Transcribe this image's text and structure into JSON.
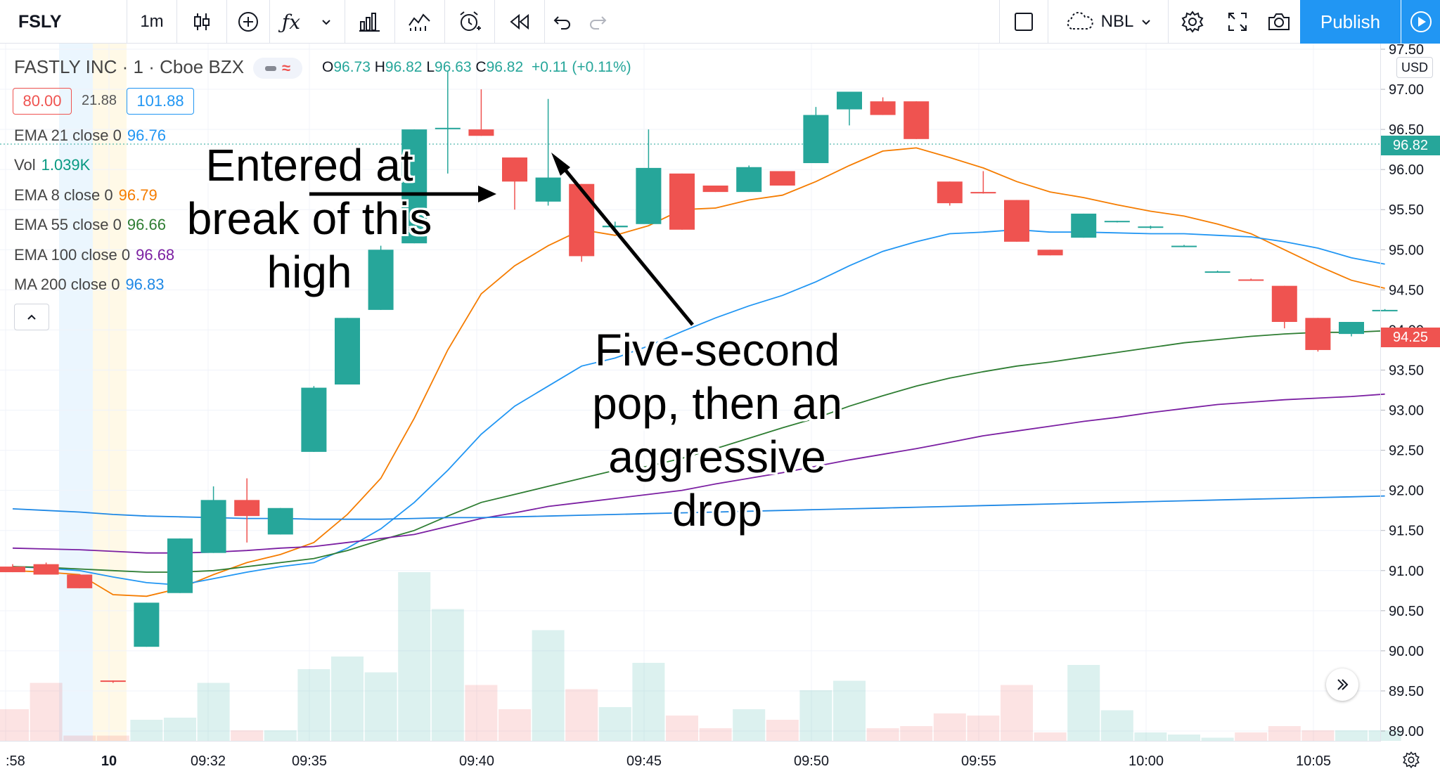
{
  "toolbar": {
    "symbol": "FSLY",
    "interval": "1m",
    "fx_label": "ƒx",
    "exchange_label": "NBL",
    "publish_label": "Publish"
  },
  "legend": {
    "title": "FASTLY INC · 1 · Cboe BZX",
    "ohlc": {
      "o_label": "O",
      "o": "96.73",
      "h_label": "H",
      "h": "96.82",
      "l_label": "L",
      "l": "96.63",
      "c_label": "C",
      "c": "96.82",
      "change": "+0.11 (+0.11%)"
    },
    "boxes": {
      "left": "80.00",
      "mid": "21.88",
      "right": "101.88"
    },
    "indicators": [
      {
        "label": "EMA 21 close 0",
        "value": "96.76",
        "color": "#2196f3"
      },
      {
        "label": "Vol",
        "value": "1.039K",
        "color": "#089981"
      },
      {
        "label": "EMA 8 close 0",
        "value": "96.79",
        "color": "#f57c00"
      },
      {
        "label": "EMA 55 close 0",
        "value": "96.66",
        "color": "#2e7d32"
      },
      {
        "label": "EMA 100 close 0",
        "value": "96.68",
        "color": "#7b1fa2"
      },
      {
        "label": "MA 200 close 0",
        "value": "96.83",
        "color": "#1e88e5"
      }
    ]
  },
  "annotations": {
    "entry": "Entered at break of this high",
    "pop": "Five-second pop, then an aggressive drop"
  },
  "price_axis": {
    "currency": "USD",
    "ticks": [
      "97.50",
      "97.00",
      "96.50",
      "96.00",
      "95.50",
      "95.00",
      "94.50",
      "94.00",
      "93.50",
      "93.00",
      "92.50",
      "92.00",
      "91.50",
      "91.00",
      "90.50",
      "90.00",
      "89.50",
      "89.00"
    ],
    "last_price": "96.82",
    "current_price": "94.25"
  },
  "time_axis": {
    "ticks": [
      ":58",
      "10",
      "09:32",
      "09:35",
      "09:40",
      "09:45",
      "09:50",
      "09:55",
      "10:00",
      "10:05"
    ]
  },
  "colors": {
    "up": "#26a69a",
    "down": "#ef5350",
    "ema8": "#f57c00",
    "ema21": "#2196f3",
    "ema55": "#2e7d32",
    "ema100": "#7b1fa2",
    "ma200": "#1e88e5",
    "accent": "#2196f3"
  },
  "chart_data": {
    "type": "candlestick",
    "title": "FASTLY INC · 1 · Cboe BZX",
    "ylim": [
      89.0,
      97.5
    ],
    "candles": [
      {
        "o": 91.05,
        "h": 91.08,
        "l": 90.98,
        "c": 90.98
      },
      {
        "o": 91.08,
        "h": 91.1,
        "l": 90.95,
        "c": 90.95
      },
      {
        "o": 90.95,
        "h": 90.95,
        "l": 90.78,
        "c": 90.78
      },
      {
        "o": 89.63,
        "h": 89.63,
        "l": 89.6,
        "c": 89.62
      },
      {
        "o": 90.05,
        "h": 90.6,
        "l": 90.05,
        "c": 90.6
      },
      {
        "o": 90.72,
        "h": 91.4,
        "l": 90.72,
        "c": 91.4
      },
      {
        "o": 91.22,
        "h": 92.05,
        "l": 91.22,
        "c": 91.88
      },
      {
        "o": 91.88,
        "h": 92.15,
        "l": 91.35,
        "c": 91.68
      },
      {
        "o": 91.45,
        "h": 91.78,
        "l": 91.45,
        "c": 91.78
      },
      {
        "o": 92.48,
        "h": 93.3,
        "l": 92.48,
        "c": 93.28
      },
      {
        "o": 93.32,
        "h": 94.15,
        "l": 93.32,
        "c": 94.15
      },
      {
        "o": 94.25,
        "h": 95.05,
        "l": 94.25,
        "c": 95.0
      },
      {
        "o": 95.08,
        "h": 96.5,
        "l": 95.08,
        "c": 96.5
      },
      {
        "o": 96.52,
        "h": 97.22,
        "l": 95.95,
        "c": 96.52
      },
      {
        "o": 96.5,
        "h": 97.0,
        "l": 96.42,
        "c": 96.42
      },
      {
        "o": 96.15,
        "h": 96.15,
        "l": 95.5,
        "c": 95.85
      },
      {
        "o": 95.6,
        "h": 96.88,
        "l": 95.55,
        "c": 95.9
      },
      {
        "o": 95.82,
        "h": 95.82,
        "l": 94.85,
        "c": 94.92
      },
      {
        "o": 95.28,
        "h": 95.35,
        "l": 95.22,
        "c": 95.3
      },
      {
        "o": 95.32,
        "h": 96.5,
        "l": 95.32,
        "c": 96.02
      },
      {
        "o": 95.95,
        "h": 95.95,
        "l": 95.25,
        "c": 95.25
      },
      {
        "o": 95.8,
        "h": 95.8,
        "l": 95.72,
        "c": 95.72
      },
      {
        "o": 95.72,
        "h": 96.05,
        "l": 95.72,
        "c": 96.03
      },
      {
        "o": 95.98,
        "h": 95.98,
        "l": 95.8,
        "c": 95.8
      },
      {
        "o": 96.08,
        "h": 96.78,
        "l": 96.08,
        "c": 96.68
      },
      {
        "o": 96.75,
        "h": 96.97,
        "l": 96.55,
        "c": 96.97
      },
      {
        "o": 96.85,
        "h": 96.9,
        "l": 96.68,
        "c": 96.68
      },
      {
        "o": 96.85,
        "h": 96.85,
        "l": 96.38,
        "c": 96.38
      },
      {
        "o": 95.85,
        "h": 95.85,
        "l": 95.55,
        "c": 95.58
      },
      {
        "o": 95.72,
        "h": 95.98,
        "l": 95.7,
        "c": 95.71
      },
      {
        "o": 95.62,
        "h": 95.62,
        "l": 95.1,
        "c": 95.1
      },
      {
        "o": 95.0,
        "h": 95.0,
        "l": 94.93,
        "c": 94.93
      },
      {
        "o": 95.15,
        "h": 95.45,
        "l": 95.15,
        "c": 95.45
      },
      {
        "o": 95.35,
        "h": 95.36,
        "l": 95.34,
        "c": 95.36
      },
      {
        "o": 95.28,
        "h": 95.3,
        "l": 95.26,
        "c": 95.29
      },
      {
        "o": 95.05,
        "h": 95.06,
        "l": 95.04,
        "c": 95.05
      },
      {
        "o": 94.73,
        "h": 94.74,
        "l": 94.72,
        "c": 94.73
      },
      {
        "o": 94.63,
        "h": 94.64,
        "l": 94.62,
        "c": 94.62
      },
      {
        "o": 94.55,
        "h": 94.55,
        "l": 94.02,
        "c": 94.1
      },
      {
        "o": 94.15,
        "h": 94.15,
        "l": 93.73,
        "c": 93.75
      },
      {
        "o": 93.95,
        "h": 94.1,
        "l": 93.92,
        "c": 94.1
      },
      {
        "o": 94.25,
        "h": 94.26,
        "l": 94.24,
        "c": 94.25
      }
    ],
    "volume_relative": [
      0.3,
      0.55,
      0.05,
      0.05,
      0.2,
      0.22,
      0.55,
      0.1,
      0.1,
      0.68,
      0.8,
      0.65,
      1.6,
      1.25,
      0.53,
      0.3,
      1.05,
      0.49,
      0.32,
      0.74,
      0.24,
      0.12,
      0.3,
      0.2,
      0.48,
      0.57,
      0.12,
      0.14,
      0.26,
      0.24,
      0.53,
      0.08,
      0.72,
      0.29,
      0.08,
      0.06,
      0.03,
      0.08,
      0.14,
      0.1,
      0.1,
      0.1
    ],
    "series": [
      {
        "name": "EMA 8 close 0",
        "values": [
          91.0,
          90.98,
          90.95,
          90.7,
          90.68,
          90.78,
          90.95,
          91.1,
          91.2,
          91.35,
          91.7,
          92.15,
          92.9,
          93.75,
          94.45,
          94.8,
          95.05,
          95.25,
          95.18,
          95.3,
          95.5,
          95.52,
          95.62,
          95.68,
          95.85,
          96.05,
          96.23,
          96.27,
          96.15,
          96.02,
          95.85,
          95.72,
          95.65,
          95.56,
          95.48,
          95.42,
          95.32,
          95.2,
          95.0,
          94.8,
          94.62,
          94.52
        ]
      },
      {
        "name": "EMA 21 close 0",
        "values": [
          91.05,
          91.03,
          91.0,
          90.92,
          90.85,
          90.82,
          90.9,
          90.98,
          91.05,
          91.1,
          91.28,
          91.52,
          91.85,
          92.25,
          92.7,
          93.05,
          93.3,
          93.55,
          93.65,
          93.8,
          93.98,
          94.15,
          94.3,
          94.43,
          94.6,
          94.8,
          94.98,
          95.1,
          95.2,
          95.22,
          95.25,
          95.22,
          95.22,
          95.21,
          95.2,
          95.2,
          95.18,
          95.16,
          95.1,
          95.02,
          94.9,
          94.82
        ]
      },
      {
        "name": "EMA 55 close 0",
        "values": [
          91.05,
          91.04,
          91.02,
          91.0,
          90.98,
          90.98,
          91.0,
          91.05,
          91.1,
          91.15,
          91.25,
          91.38,
          91.5,
          91.68,
          91.85,
          91.95,
          92.05,
          92.15,
          92.25,
          92.3,
          92.4,
          92.52,
          92.65,
          92.78,
          92.9,
          93.05,
          93.18,
          93.3,
          93.4,
          93.48,
          93.55,
          93.6,
          93.66,
          93.72,
          93.78,
          93.84,
          93.88,
          93.92,
          93.95,
          93.97,
          93.97,
          93.99
        ]
      },
      {
        "name": "EMA 100 close 0",
        "values": [
          91.28,
          91.27,
          91.26,
          91.24,
          91.22,
          91.22,
          91.23,
          91.25,
          91.28,
          91.3,
          91.35,
          91.4,
          91.45,
          91.55,
          91.65,
          91.72,
          91.8,
          91.85,
          91.9,
          91.95,
          92.0,
          92.08,
          92.15,
          92.22,
          92.3,
          92.38,
          92.45,
          92.52,
          92.6,
          92.68,
          92.74,
          92.8,
          92.86,
          92.91,
          92.97,
          93.02,
          93.07,
          93.1,
          93.13,
          93.15,
          93.17,
          93.2
        ]
      },
      {
        "name": "MA 200 close 0",
        "values": [
          91.77,
          91.75,
          91.73,
          91.7,
          91.68,
          91.67,
          91.66,
          91.65,
          91.65,
          91.64,
          91.64,
          91.64,
          91.65,
          91.66,
          91.66,
          91.67,
          91.68,
          91.69,
          91.7,
          91.71,
          91.72,
          91.73,
          91.74,
          91.75,
          91.76,
          91.77,
          91.78,
          91.79,
          91.8,
          91.81,
          91.82,
          91.83,
          91.84,
          91.85,
          91.86,
          91.87,
          91.88,
          91.89,
          91.9,
          91.91,
          91.92,
          91.93
        ]
      }
    ]
  }
}
